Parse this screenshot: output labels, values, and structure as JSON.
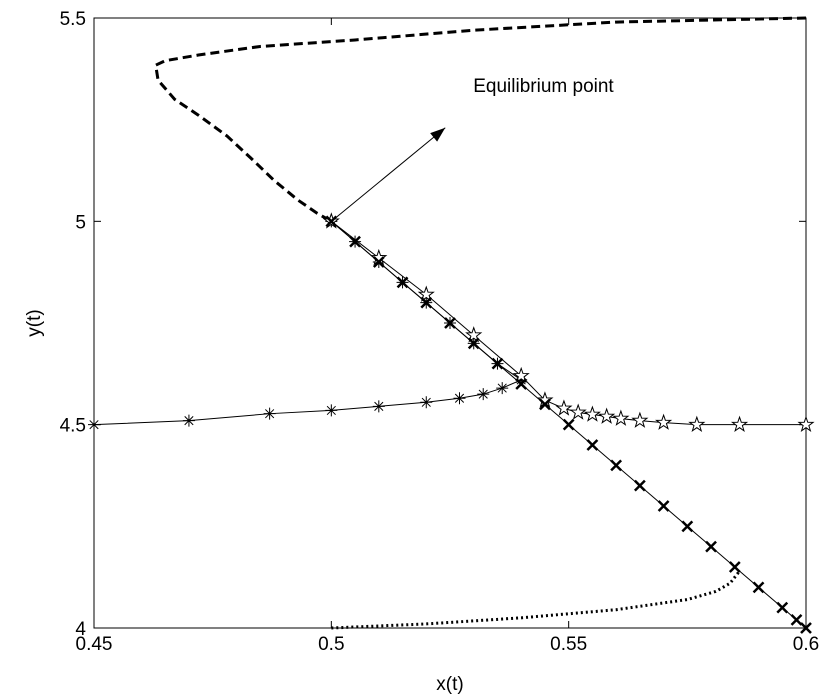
{
  "chart_data": {
    "type": "line",
    "xlabel": "x(t)",
    "ylabel": "y(t)",
    "xlim": [
      0.45,
      0.6
    ],
    "ylim": [
      4,
      5.5
    ],
    "xticks": [
      0.45,
      0.5,
      0.55,
      0.6
    ],
    "yticks": [
      4,
      4.5,
      5,
      5.5
    ],
    "grid": false,
    "annotation": {
      "text": "Equilibrium point",
      "xy": [
        0.5,
        5.0
      ],
      "xytext": [
        0.524,
        5.23
      ]
    },
    "series": [
      {
        "color": "#000000",
        "linestyle": "dashed",
        "marker": "none",
        "x": [
          0.6,
          0.56,
          0.53,
          0.505,
          0.485,
          0.472,
          0.465,
          0.463,
          0.4635,
          0.467,
          0.472,
          0.478,
          0.483,
          0.488,
          0.493,
          0.497,
          0.5
        ],
        "values": [
          5.5,
          5.49,
          5.47,
          5.446,
          5.43,
          5.409,
          5.395,
          5.384,
          5.347,
          5.3,
          5.261,
          5.21,
          5.156,
          5.1,
          5.052,
          5.02,
          5.0
        ]
      },
      {
        "color": "#000000",
        "linestyle": "solid",
        "marker": "asterisk",
        "x": [
          0.45,
          0.47,
          0.487,
          0.5,
          0.51,
          0.52,
          0.527,
          0.532,
          0.536,
          0.54,
          0.535,
          0.53,
          0.525,
          0.52,
          0.515,
          0.51,
          0.505,
          0.5
        ],
        "values": [
          4.5,
          4.51,
          4.527,
          4.535,
          4.545,
          4.555,
          4.565,
          4.575,
          4.59,
          4.61,
          4.65,
          4.7,
          4.75,
          4.8,
          4.85,
          4.9,
          4.95,
          5.0
        ]
      },
      {
        "color": "#000000",
        "linestyle": "solid",
        "marker": "pentagram",
        "x": [
          0.6,
          0.586,
          0.577,
          0.57,
          0.565,
          0.561,
          0.558,
          0.555,
          0.552,
          0.549,
          0.545,
          0.54,
          0.53,
          0.52,
          0.51,
          0.5
        ],
        "values": [
          4.5,
          4.5,
          4.5,
          4.505,
          4.51,
          4.515,
          4.52,
          4.525,
          4.53,
          4.54,
          4.56,
          4.62,
          4.72,
          4.82,
          4.91,
          5.0
        ]
      },
      {
        "color": "#000000",
        "linestyle": "solid",
        "marker": "x",
        "x": [
          0.6,
          0.598,
          0.595,
          0.59,
          0.585,
          0.58,
          0.575,
          0.57,
          0.565,
          0.56,
          0.555,
          0.55,
          0.545,
          0.54,
          0.535,
          0.53,
          0.525,
          0.52,
          0.515,
          0.51,
          0.505,
          0.5
        ],
        "values": [
          4.0,
          4.02,
          4.05,
          4.1,
          4.15,
          4.2,
          4.25,
          4.3,
          4.35,
          4.4,
          4.45,
          4.5,
          4.55,
          4.6,
          4.65,
          4.7,
          4.75,
          4.8,
          4.85,
          4.9,
          4.95,
          5.0
        ]
      },
      {
        "color": "#000000",
        "linestyle": "dotted",
        "marker": "none",
        "x": [
          0.5,
          0.52,
          0.54,
          0.56,
          0.575,
          0.581,
          0.584,
          0.586
        ],
        "values": [
          4.0,
          4.01,
          4.025,
          4.045,
          4.07,
          4.09,
          4.11,
          4.14
        ]
      }
    ]
  }
}
